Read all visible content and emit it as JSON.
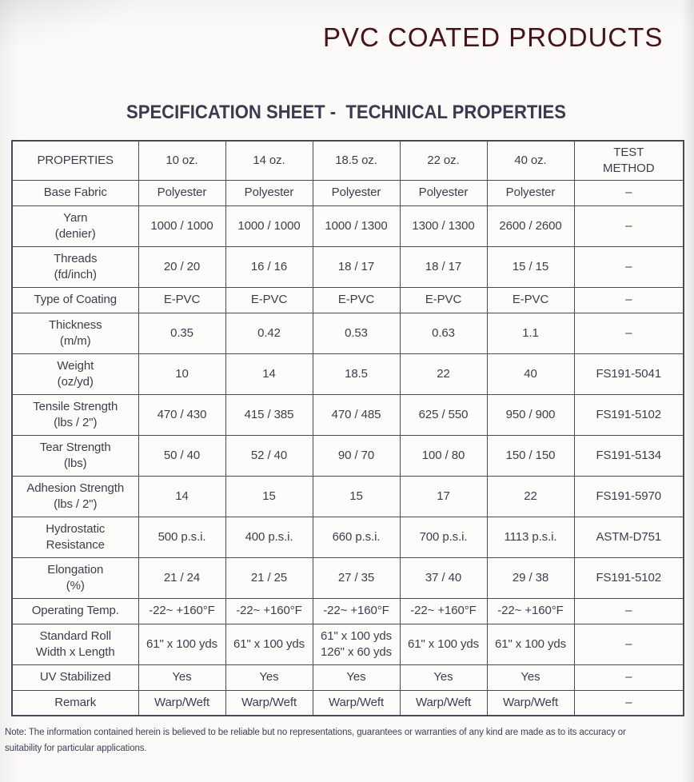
{
  "page": {
    "title": "PVC COATED PRODUCTS",
    "subtitle": "SPECIFICATION SHEET -  TECHNICAL PROPERTIES",
    "note": "Note: The information contained herein is believed to be reliable but no representations, guarantees or warranties of any kind are made as to its accuracy or suitability for particular applications."
  },
  "colors": {
    "title_maroon": "#4a1216",
    "text_slate": "#3d3d4e",
    "table_border": "#4a4a56",
    "paper": "#fbfaf8"
  },
  "table": {
    "columns": [
      [
        "PROPERTIES"
      ],
      [
        "10 oz."
      ],
      [
        "14 oz."
      ],
      [
        "18.5 oz."
      ],
      [
        "22 oz."
      ],
      [
        "40 oz."
      ],
      [
        "TEST",
        "METHOD"
      ]
    ],
    "empty_mark": "–",
    "rows": [
      {
        "h": "short",
        "label": [
          "Base Fabric"
        ],
        "values": [
          [
            "Polyester"
          ],
          [
            "Polyester"
          ],
          [
            "Polyester"
          ],
          [
            "Polyester"
          ],
          [
            "Polyester"
          ]
        ],
        "test": "–"
      },
      {
        "h": "tall",
        "label": [
          "Yarn",
          "(denier)"
        ],
        "values": [
          [
            "1000 / 1000"
          ],
          [
            "1000 / 1000"
          ],
          [
            "1000 / 1300"
          ],
          [
            "1300 / 1300"
          ],
          [
            "2600 / 2600"
          ]
        ],
        "test": "–"
      },
      {
        "h": "tall",
        "label": [
          "Threads",
          "(fd/inch)"
        ],
        "values": [
          [
            "20 / 20"
          ],
          [
            "16 / 16"
          ],
          [
            "18 / 17"
          ],
          [
            "18 / 17"
          ],
          [
            "15 / 15"
          ]
        ],
        "test": "–"
      },
      {
        "h": "short",
        "label": [
          "Type of Coating"
        ],
        "values": [
          [
            "E-PVC"
          ],
          [
            "E-PVC"
          ],
          [
            "E-PVC"
          ],
          [
            "E-PVC"
          ],
          [
            "E-PVC"
          ]
        ],
        "test": "–"
      },
      {
        "h": "tall",
        "label": [
          "Thickness",
          "(m/m)"
        ],
        "values": [
          [
            "0.35"
          ],
          [
            "0.42"
          ],
          [
            "0.53"
          ],
          [
            "0.63"
          ],
          [
            "1.1"
          ]
        ],
        "test": "–"
      },
      {
        "h": "tall",
        "label": [
          "Weight",
          "(oz/yd)"
        ],
        "values": [
          [
            "10"
          ],
          [
            "14"
          ],
          [
            "18.5"
          ],
          [
            "22"
          ],
          [
            "40"
          ]
        ],
        "test": "FS191-5041"
      },
      {
        "h": "tall",
        "label": [
          "Tensile Strength",
          "(lbs / 2\")"
        ],
        "values": [
          [
            "470 / 430"
          ],
          [
            "415 / 385"
          ],
          [
            "470 / 485"
          ],
          [
            "625 / 550"
          ],
          [
            "950 / 900"
          ]
        ],
        "test": "FS191-5102"
      },
      {
        "h": "tall",
        "label": [
          "Tear Strength",
          "(lbs)"
        ],
        "values": [
          [
            "50 / 40"
          ],
          [
            "52 / 40"
          ],
          [
            "90 / 70"
          ],
          [
            "100 / 80"
          ],
          [
            "150 / 150"
          ]
        ],
        "test": "FS191-5134"
      },
      {
        "h": "tall",
        "label": [
          "Adhesion Strength",
          "(lbs / 2\")"
        ],
        "values": [
          [
            "14"
          ],
          [
            "15"
          ],
          [
            "15"
          ],
          [
            "17"
          ],
          [
            "22"
          ]
        ],
        "test": "FS191-5970"
      },
      {
        "h": "tall",
        "label": [
          "Hydrostatic",
          "Resistance"
        ],
        "values": [
          [
            "500 p.s.i."
          ],
          [
            "400 p.s.i."
          ],
          [
            "660 p.s.i."
          ],
          [
            "700 p.s.i."
          ],
          [
            "1113 p.s.i."
          ]
        ],
        "test": "ASTM-D751"
      },
      {
        "h": "tall",
        "label": [
          "Elongation",
          "(%)"
        ],
        "values": [
          [
            "21 / 24"
          ],
          [
            "21 / 25"
          ],
          [
            "27 / 35"
          ],
          [
            "37 / 40"
          ],
          [
            "29 / 38"
          ]
        ],
        "test": "FS191-5102"
      },
      {
        "h": "short",
        "label": [
          "Operating Temp."
        ],
        "values": [
          [
            "-22~ +160°F"
          ],
          [
            "-22~ +160°F"
          ],
          [
            "-22~ +160°F"
          ],
          [
            "-22~ +160°F"
          ],
          [
            "-22~ +160°F"
          ]
        ],
        "test": "–"
      },
      {
        "h": "tall",
        "label": [
          "Standard Roll",
          "Width x Length"
        ],
        "values": [
          [
            "61\" x 100 yds"
          ],
          [
            "61\" x 100 yds"
          ],
          [
            "61\" x 100 yds",
            "126\" x 60 yds"
          ],
          [
            "61\" x 100 yds"
          ],
          [
            "61\" x 100 yds"
          ]
        ],
        "test": "–"
      },
      {
        "h": "short",
        "label": [
          "UV Stabilized"
        ],
        "values": [
          [
            "Yes"
          ],
          [
            "Yes"
          ],
          [
            "Yes"
          ],
          [
            "Yes"
          ],
          [
            "Yes"
          ]
        ],
        "test": "–"
      },
      {
        "h": "short",
        "label": [
          "Remark"
        ],
        "values": [
          [
            "Warp/Weft"
          ],
          [
            "Warp/Weft"
          ],
          [
            "Warp/Weft"
          ],
          [
            "Warp/Weft"
          ],
          [
            "Warp/Weft"
          ]
        ],
        "test": "–"
      }
    ]
  }
}
